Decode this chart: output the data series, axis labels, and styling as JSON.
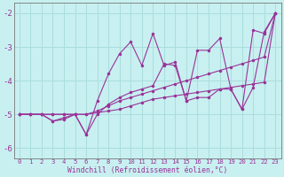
{
  "xlabel": "Windchill (Refroidissement éolien,°C)",
  "background_color": "#c8f0f0",
  "grid_color": "#aadddd",
  "line_color": "#993399",
  "xlim": [
    -0.5,
    23.5
  ],
  "ylim": [
    -6.3,
    -1.7
  ],
  "xticks": [
    0,
    1,
    2,
    3,
    4,
    5,
    6,
    7,
    8,
    9,
    10,
    11,
    12,
    13,
    14,
    15,
    16,
    17,
    18,
    19,
    20,
    21,
    22,
    23
  ],
  "yticks": [
    -6,
    -5,
    -4,
    -3,
    -2
  ],
  "x": [
    0,
    1,
    2,
    3,
    4,
    5,
    6,
    7,
    8,
    9,
    10,
    11,
    12,
    13,
    14,
    15,
    16,
    17,
    18,
    19,
    20,
    21,
    22,
    23
  ],
  "line1_zigzag": [
    -5.0,
    -5.0,
    -5.0,
    -5.2,
    -5.1,
    -5.0,
    -5.6,
    -4.6,
    -3.8,
    -3.2,
    -2.85,
    -3.55,
    -2.6,
    -3.55,
    -3.45,
    -4.6,
    -3.1,
    -3.1,
    -2.75,
    -4.25,
    -4.85,
    -2.5,
    -2.6,
    -2.0
  ],
  "line2_smooth1": [
    -5.0,
    -5.0,
    -5.0,
    -5.0,
    -5.0,
    -5.0,
    -5.0,
    -4.9,
    -4.75,
    -4.6,
    -4.5,
    -4.4,
    -4.3,
    -4.2,
    -4.1,
    -4.0,
    -3.9,
    -3.8,
    -3.7,
    -3.6,
    -3.5,
    -3.4,
    -3.3,
    -2.0
  ],
  "line3_smooth2": [
    -5.0,
    -5.0,
    -5.0,
    -5.0,
    -5.0,
    -5.0,
    -5.0,
    -4.95,
    -4.9,
    -4.85,
    -4.75,
    -4.65,
    -4.55,
    -4.5,
    -4.45,
    -4.4,
    -4.35,
    -4.3,
    -4.25,
    -4.2,
    -4.15,
    -4.1,
    -4.05,
    -2.0
  ],
  "line4_medium": [
    -5.0,
    -5.0,
    -5.0,
    -5.2,
    -5.15,
    -5.0,
    -5.6,
    -5.0,
    -4.7,
    -4.5,
    -4.35,
    -4.25,
    -4.15,
    -3.5,
    -3.55,
    -4.6,
    -4.5,
    -4.5,
    -4.25,
    -4.25,
    -4.85,
    -4.2,
    -2.55,
    -2.0
  ]
}
